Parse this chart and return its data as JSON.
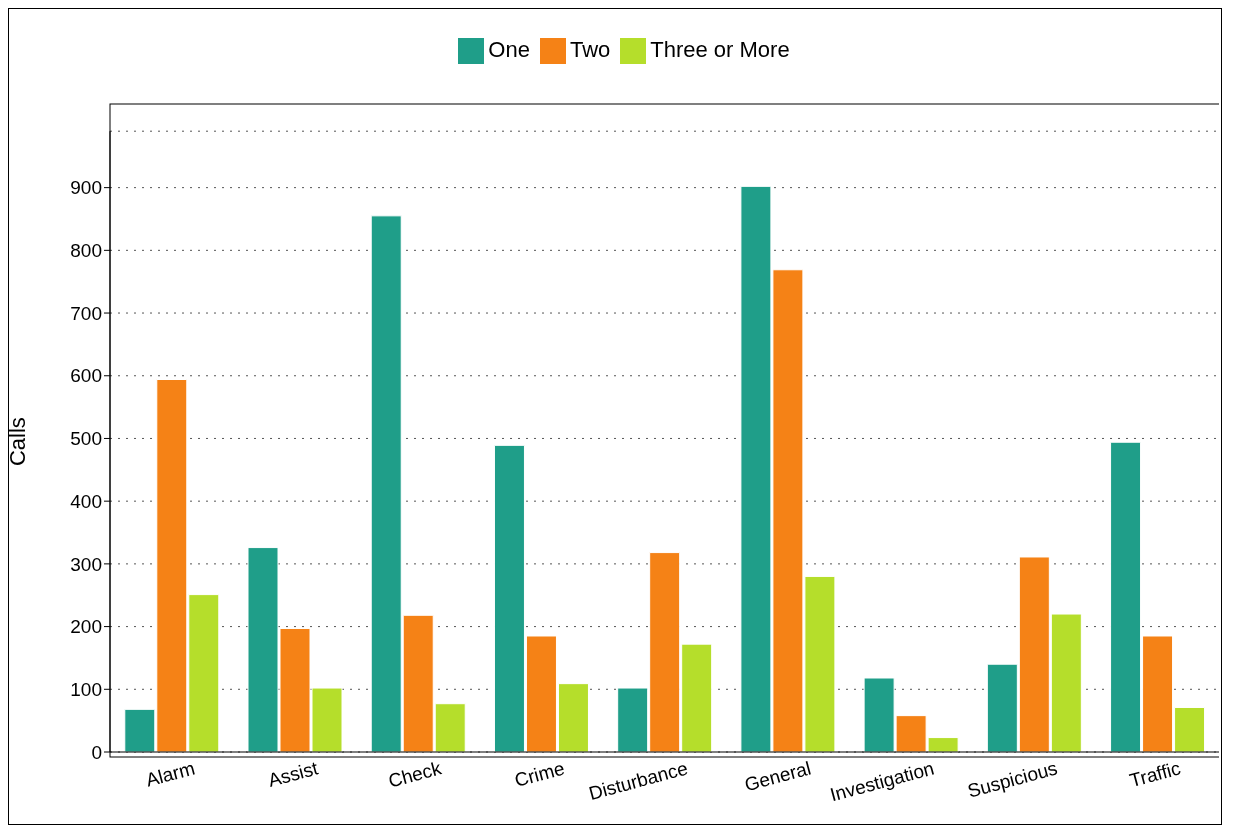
{
  "chart_data": {
    "type": "bar",
    "ylabel": "Calls",
    "categories": [
      "Alarm",
      "Assist",
      "Check",
      "Crime",
      "Disturbance",
      "General",
      "Investigation",
      "Suspicious",
      "Traffic"
    ],
    "series": [
      {
        "name": "One",
        "color": "#1f9e89",
        "values": [
          68,
          326,
          855,
          489,
          102,
          902,
          118,
          140,
          494
        ]
      },
      {
        "name": "Two",
        "color": "#f58216",
        "values": [
          594,
          197,
          218,
          185,
          318,
          769,
          58,
          311,
          185
        ]
      },
      {
        "name": "Three or More",
        "color": "#b5de2b",
        "values": [
          251,
          102,
          77,
          109,
          172,
          280,
          23,
          220,
          71
        ]
      }
    ],
    "ylim": [
      0,
      990
    ],
    "yticks": [
      0,
      100,
      200,
      300,
      400,
      500,
      600,
      700,
      800,
      900
    ],
    "grid": "y",
    "legend": "top"
  }
}
